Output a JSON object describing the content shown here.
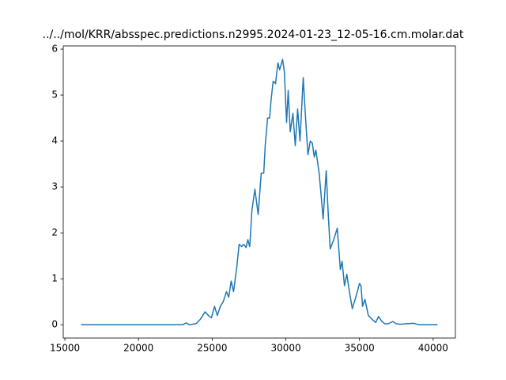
{
  "chart_data": {
    "type": "line",
    "title": "../../mol/KRR/absspec.predictions.n2995.2024-01-23_12-05-16.cm.molar.dat",
    "x": [
      16100,
      18000,
      20000,
      22000,
      23000,
      23226,
      23450,
      23900,
      24200,
      24515,
      24750,
      24950,
      25160,
      25350,
      25550,
      25750,
      25970,
      26120,
      26290,
      26450,
      26650,
      26830,
      27000,
      27150,
      27300,
      27420,
      27550,
      27700,
      27900,
      28120,
      28330,
      28500,
      28600,
      28760,
      28900,
      29000,
      29140,
      29300,
      29460,
      29580,
      29780,
      29900,
      30050,
      30160,
      30300,
      30480,
      30640,
      30800,
      30960,
      31180,
      31320,
      31500,
      31660,
      31800,
      31930,
      32040,
      32260,
      32400,
      32530,
      32740,
      32880,
      33010,
      33250,
      33490,
      33700,
      33820,
      33980,
      34140,
      34300,
      34510,
      34750,
      35000,
      35100,
      35210,
      35370,
      35600,
      35910,
      36100,
      36290,
      36500,
      36720,
      36950,
      37260,
      37500,
      37800,
      38100,
      38710,
      39000,
      40300
    ],
    "values": [
      0,
      0,
      0,
      0,
      0,
      0.04,
      0,
      0.02,
      0.12,
      0.28,
      0.2,
      0.15,
      0.4,
      0.2,
      0.4,
      0.5,
      0.72,
      0.6,
      0.95,
      0.72,
      1.2,
      1.75,
      1.7,
      1.75,
      1.68,
      1.85,
      1.7,
      2.5,
      2.95,
      2.4,
      3.3,
      3.3,
      3.9,
      4.5,
      4.5,
      4.9,
      5.3,
      5.25,
      5.7,
      5.55,
      5.78,
      5.5,
      4.4,
      5.1,
      4.2,
      4.6,
      3.9,
      4.7,
      4.0,
      5.38,
      4.6,
      3.7,
      4.0,
      3.95,
      3.65,
      3.8,
      3.3,
      2.8,
      2.3,
      3.35,
      2.4,
      1.65,
      1.85,
      2.1,
      1.2,
      1.38,
      0.85,
      1.1,
      0.75,
      0.35,
      0.6,
      0.9,
      0.85,
      0.4,
      0.55,
      0.2,
      0.1,
      0.05,
      0.18,
      0.08,
      0.02,
      0.02,
      0.07,
      0.02,
      0.01,
      0.02,
      0.03,
      0,
      0
    ],
    "color": "#1f77b4",
    "xlim": [
      14890,
      41510
    ],
    "ylim": [
      -0.29,
      6.07
    ],
    "xticks": [
      15000,
      20000,
      25000,
      30000,
      35000,
      40000
    ],
    "yticks": [
      0,
      1,
      2,
      3,
      4,
      5,
      6
    ]
  }
}
